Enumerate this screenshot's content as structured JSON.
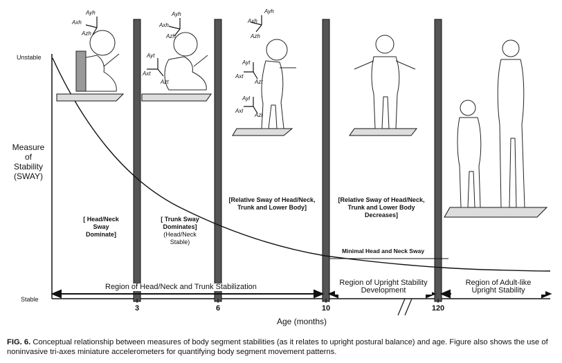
{
  "axes": {
    "y_label_lines": [
      "Measure",
      "of",
      "Stability",
      "(SWAY)"
    ],
    "y_top": "Unstable",
    "y_bottom": "Stable",
    "x_label": "Age (months)",
    "x_ticks": [
      "3",
      "6",
      "10",
      "120"
    ]
  },
  "stages": [
    {
      "lines": [
        "[ Head/Neck",
        "Sway",
        "Dominate]"
      ],
      "sub": []
    },
    {
      "lines": [
        "[ Trunk Sway",
        "Dominates]"
      ],
      "sub": [
        "(Head/Neck",
        "Stable)"
      ]
    },
    {
      "lines": [
        "[Relative Sway of Head/Neck,",
        "Trunk and Lower Body]"
      ],
      "sub": []
    },
    {
      "lines": [
        "[Relative Sway of Head/Neck,",
        "Trunk and Lower Body",
        "Decreases]"
      ],
      "sub": []
    }
  ],
  "minimal_label": "Minimal Head and Neck Sway",
  "regions": [
    {
      "text": "Region of Head/Neck and Trunk Stabilization"
    },
    {
      "lines": [
        "Region of Upright Stability",
        "Development"
      ]
    },
    {
      "lines": [
        "Region of Adult-like",
        "Upright Stability"
      ]
    }
  ],
  "accel_labels": {
    "head_y": "Ayh",
    "head_x": "Axh",
    "head_z": "Azh",
    "trunk_y": "Ayt",
    "trunk_x": "Axt",
    "trunk_z": "Azt",
    "leg_y": "Ayl",
    "leg_x": "Axl",
    "leg_z": "Azl"
  },
  "caption": {
    "label": "FIG. 6.",
    "text": "Conceptual relationship between measures of body segment stabilities (as it relates to upright postural balance) and age.  Figure also shows the use of noninvasive tri-axes miniature accelerometers for quantifying body segment movement patterns."
  }
}
